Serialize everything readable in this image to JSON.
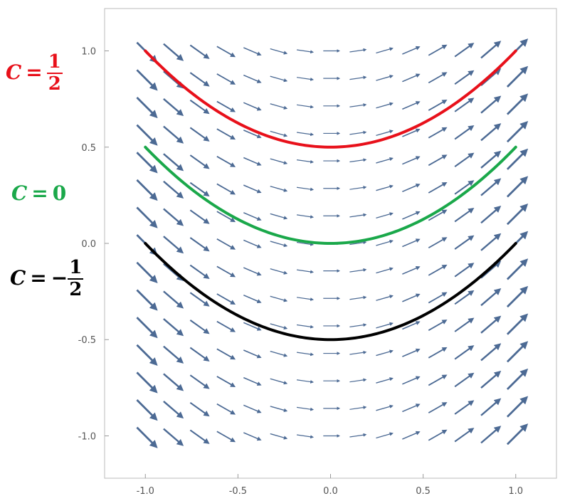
{
  "chart_data": {
    "type": "line",
    "title": "",
    "xlabel": "",
    "ylabel": "",
    "xlim": [
      -1.22,
      1.22
    ],
    "ylim": [
      -1.22,
      1.22
    ],
    "x_ticks": [
      "-1.0",
      "-0.5",
      "0.0",
      "0.5",
      "1.0"
    ],
    "y_ticks": [
      "1.0",
      "0.5",
      "0.0",
      "-0.5",
      "-1.0"
    ],
    "vector_field": {
      "x_range": [
        -1.0,
        1.0
      ],
      "y_range": [
        -1.0,
        1.0
      ],
      "grid": 15,
      "dy_dx": "x",
      "color": "#4c6a94"
    },
    "series": [
      {
        "constant": 0.5,
        "color": "#e8101a",
        "x_range": [
          -1.0,
          1.0
        ],
        "x": [
          -1.0,
          -0.5,
          0.0,
          0.5,
          1.0
        ],
        "y": [
          1.0,
          0.625,
          0.5,
          0.625,
          1.0
        ]
      },
      {
        "constant": 0.0,
        "color": "#1aa84a",
        "x_range": [
          -1.0,
          1.0
        ],
        "x": [
          -1.0,
          -0.5,
          0.0,
          0.5,
          1.0
        ],
        "y": [
          0.5,
          0.125,
          0.0,
          0.125,
          0.5
        ]
      },
      {
        "constant": -0.5,
        "color": "#000000",
        "x_range": [
          -1.0,
          1.0
        ],
        "x": [
          -1.0,
          -0.5,
          0.0,
          0.5,
          1.0
        ],
        "y": [
          0.0,
          -0.375,
          -0.5,
          -0.375,
          0.0
        ]
      }
    ],
    "annotations": [
      {
        "symbol": "C",
        "equals": "=",
        "sign": "",
        "numerator": "1",
        "denominator": "2",
        "color": "#e8101a"
      },
      {
        "symbol": "C",
        "equals": "=",
        "value": "0",
        "color": "#1aa84a"
      },
      {
        "symbol": "C",
        "equals": "=",
        "sign": "−",
        "numerator": "1",
        "denominator": "2",
        "color": "#000000"
      }
    ]
  }
}
